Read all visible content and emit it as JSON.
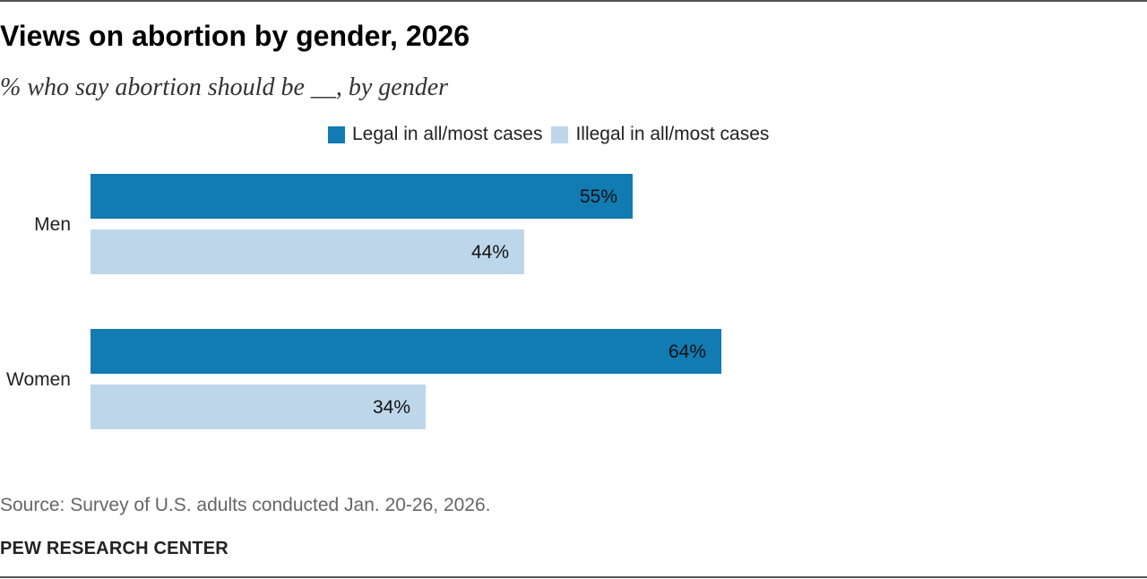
{
  "title": "Views on abortion by gender, 2026",
  "subtitle": "% who say abortion should be __, by gender",
  "source": "Source: Survey of U.S. adults conducted Jan. 20-26, 2026.",
  "brand": "PEW RESEARCH CENTER",
  "colors": {
    "legal": "#127bb2",
    "illegal": "#bed6ea",
    "text": "#222222"
  },
  "chart_data": {
    "type": "bar",
    "orientation": "horizontal",
    "title": "Views on abortion by gender, 2026",
    "subtitle": "% who say abortion should be __, by gender",
    "categories": [
      "Men",
      "Women"
    ],
    "series": [
      {
        "name": "Legal in all/most cases",
        "values": [
          55,
          64
        ],
        "labels": [
          "55%",
          "64%"
        ],
        "color": "#127bb2"
      },
      {
        "name": "Illegal in all/most cases",
        "values": [
          44,
          34
        ],
        "labels": [
          "44%",
          "34%"
        ],
        "color": "#bed6ea"
      }
    ],
    "xlim": [
      0,
      100
    ],
    "unit": "%",
    "grid": false,
    "legend": "top-center"
  }
}
